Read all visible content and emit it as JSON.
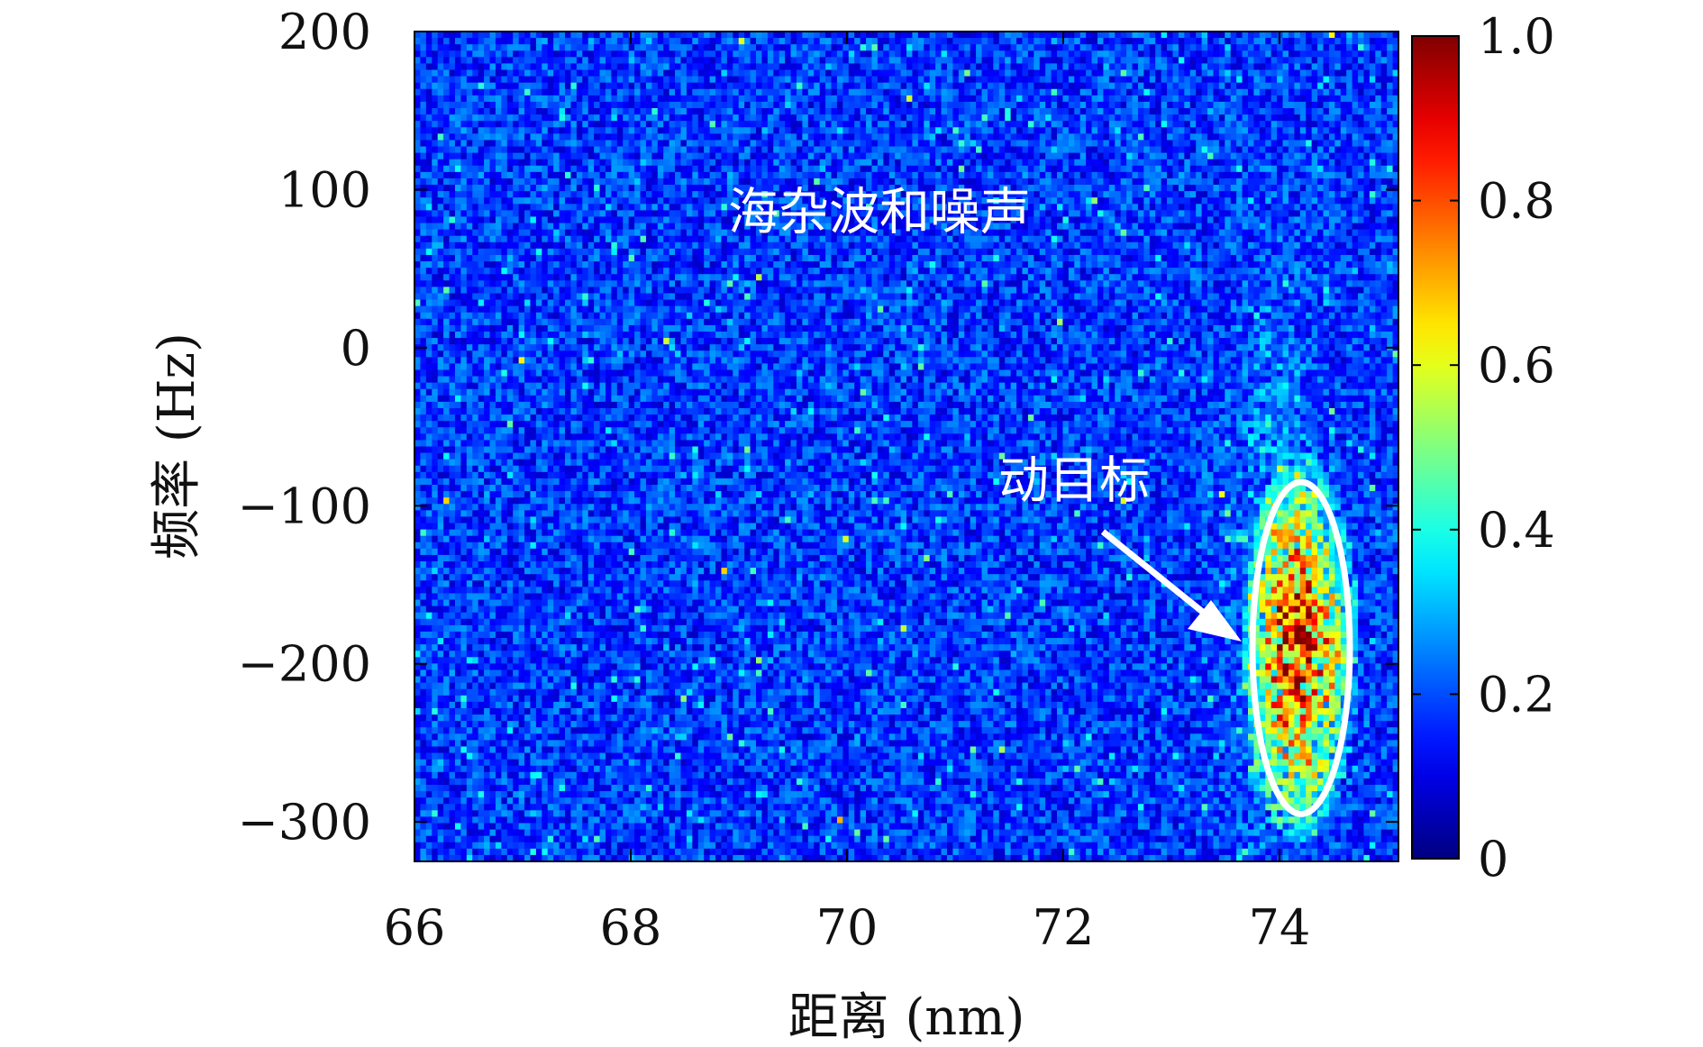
{
  "chart_data": {
    "type": "heatmap",
    "title": "",
    "xlabel": "距离 (nm)",
    "ylabel": "频率 (Hz)",
    "xlim": [
      66,
      75.1
    ],
    "ylim": [
      -325,
      200
    ],
    "x_ticks": [
      66,
      68,
      70,
      72,
      74
    ],
    "y_ticks": [
      200,
      100,
      0,
      -100,
      -200,
      -300
    ],
    "x_tick_labels": [
      "66",
      "68",
      "70",
      "72",
      "74"
    ],
    "y_tick_labels": [
      "200",
      "100",
      "0",
      "−100",
      "−200",
      "−300"
    ],
    "colormap": "jet",
    "colorbar": {
      "range": [
        0,
        1.0
      ],
      "ticks": [
        0,
        0.2,
        0.4,
        0.6,
        0.8,
        1.0
      ],
      "tick_labels": [
        "0",
        "0.2",
        "0.4",
        "0.6",
        "0.8",
        "1.0"
      ]
    },
    "background_level": 0.2,
    "target": {
      "range_center": 74.2,
      "frequency_center": -190,
      "range_width": 0.9,
      "frequency_height": 210,
      "peak_level": 0.85
    },
    "annotations": [
      {
        "text": "海杂波和噪声",
        "x": 68.9,
        "y": 75
      },
      {
        "text": "动目标",
        "x": 71.4,
        "y": -95
      }
    ],
    "grid": false
  }
}
